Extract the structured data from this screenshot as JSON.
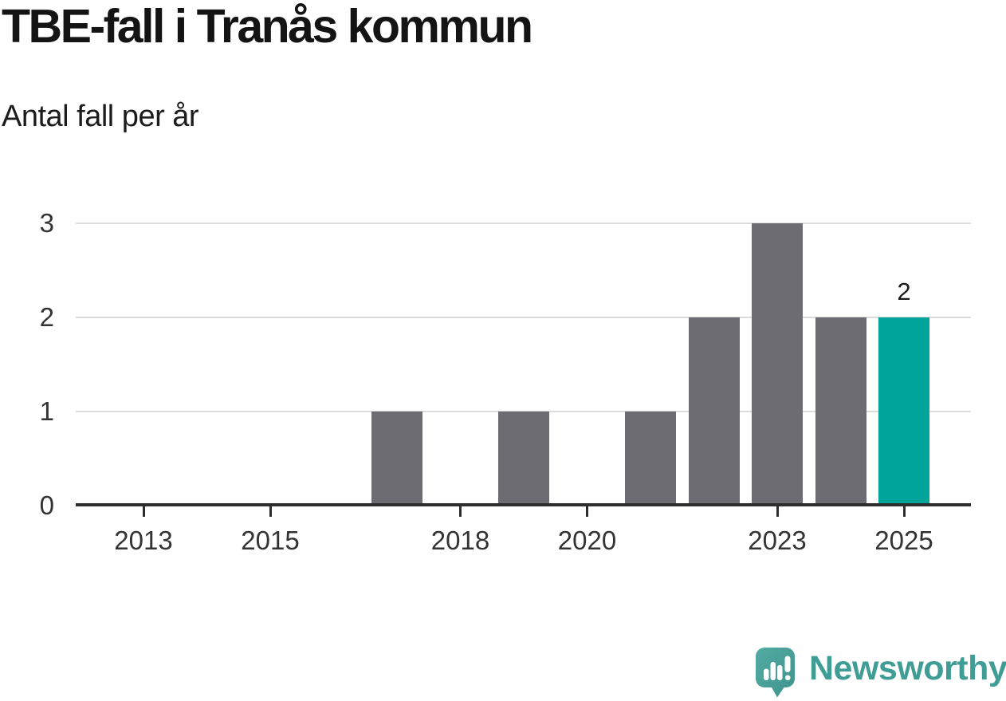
{
  "chart_data": {
    "type": "bar",
    "title": "TBE-fall i Tranås kommun",
    "subtitle": "Antal fall per år",
    "xlabel": "",
    "ylabel": "",
    "categories": [
      2013,
      2014,
      2015,
      2016,
      2017,
      2018,
      2019,
      2020,
      2021,
      2022,
      2023,
      2024,
      2025
    ],
    "values": [
      0,
      0,
      0,
      0,
      1,
      0,
      1,
      0,
      1,
      2,
      3,
      2,
      2
    ],
    "highlight_index": 12,
    "highlight_value_label": "2",
    "x_tick_labels": [
      "2013",
      "2015",
      "2018",
      "2020",
      "2023",
      "2025"
    ],
    "y_tick_labels": [
      "0",
      "1",
      "2",
      "3"
    ],
    "ylim": [
      0,
      3
    ],
    "grid": true,
    "legend_position": "none",
    "colors": {
      "bar_default": "#6c6c72",
      "bar_highlight": "#00a49b",
      "axis": "#2d2d2d",
      "gridline": "#dcdcdc",
      "tick_text": "#333333",
      "value_label_text": "#1a1a1a"
    }
  },
  "logo": {
    "wordmark": "Newsworthy",
    "icon": "newsworthy-chart-bubble-icon",
    "wordmark_color": "#3f9d96",
    "icon_color_top": "#52aba3",
    "icon_color_bottom": "#3f948d"
  }
}
